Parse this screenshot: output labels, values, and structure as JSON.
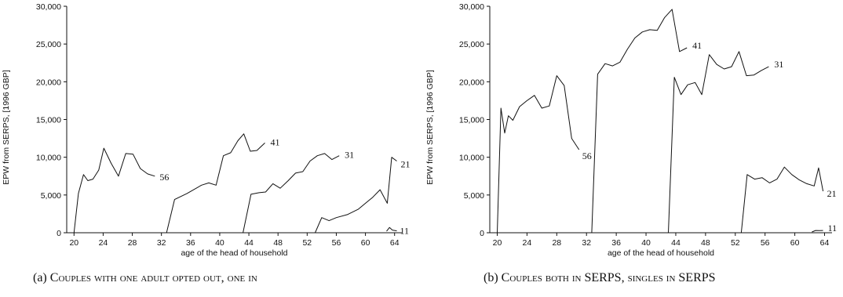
{
  "chart_data": [
    {
      "type": "line",
      "caption_label": "(a)",
      "caption_text": "Couples with one adult opted out, one in",
      "ylabel": "EPW from SERPS, [1996 GBP]",
      "xlabel": "age of the head of household",
      "xlim": [
        19,
        65
      ],
      "ylim": [
        0,
        30000
      ],
      "xticks": [
        20,
        24,
        28,
        32,
        36,
        40,
        44,
        48,
        52,
        56,
        60,
        64
      ],
      "yticks": [
        0,
        5000,
        10000,
        15000,
        20000,
        25000,
        30000
      ],
      "ytick_labels": [
        "0",
        "5,000",
        "10,000",
        "15,000",
        "20,000",
        "25,000",
        "30,000"
      ],
      "grid": false,
      "line_color": "#111111",
      "series": [
        {
          "name": "56",
          "x": [
            20,
            20.6,
            21.3,
            21.9,
            22.6,
            23.4,
            24.1,
            25.1,
            26.1,
            27.1,
            28.1,
            29.1,
            30.1,
            31.1
          ],
          "y": [
            0,
            5200,
            7700,
            6900,
            7100,
            8300,
            11200,
            9200,
            7500,
            10500,
            10400,
            8500,
            7800,
            7500
          ]
        },
        {
          "name": "41",
          "x": [
            32.7,
            33.8,
            35.5,
            37.5,
            38.5,
            39.5,
            40.5,
            41.5,
            42.5,
            43.3,
            44.2,
            45.1,
            46.2
          ],
          "y": [
            0,
            4400,
            5200,
            6300,
            6600,
            6300,
            10200,
            10600,
            12200,
            13100,
            10800,
            10900,
            11900
          ]
        },
        {
          "name": "31",
          "x": [
            43.2,
            44.3,
            45.4,
            46.3,
            47.3,
            48.3,
            49.4,
            50.4,
            51.4,
            52.4,
            53.4,
            54.4,
            55.4,
            56.4
          ],
          "y": [
            0,
            5100,
            5300,
            5400,
            6500,
            5900,
            6900,
            7900,
            8100,
            9500,
            10200,
            10500,
            9700,
            10200
          ]
        },
        {
          "name": "21",
          "x": [
            53.1,
            54.0,
            55.0,
            56.0,
            57.5,
            59.0,
            60.0,
            61.0,
            62.0,
            63.0,
            63.6,
            64.3
          ],
          "y": [
            0,
            2000,
            1600,
            2000,
            2400,
            3100,
            3900,
            4700,
            5700,
            3900,
            10000,
            9500
          ]
        },
        {
          "name": "11",
          "x": [
            62.9,
            63.3,
            63.7,
            64.3
          ],
          "y": [
            200,
            700,
            350,
            250
          ]
        }
      ]
    },
    {
      "type": "line",
      "caption_label": "(b)",
      "caption_text": "Couples both in SERPS, singles in SERPS",
      "ylabel": "EPW from SERPS, [1996 GBP]",
      "xlabel": "age of the head of household",
      "xlim": [
        19,
        65
      ],
      "ylim": [
        0,
        30000
      ],
      "xticks": [
        20,
        24,
        28,
        32,
        36,
        40,
        44,
        48,
        52,
        56,
        60,
        64
      ],
      "yticks": [
        0,
        5000,
        10000,
        15000,
        20000,
        25000,
        30000
      ],
      "ytick_labels": [
        "0",
        "5,000",
        "10,000",
        "15,000",
        "20,000",
        "25,000",
        "30,000"
      ],
      "grid": false,
      "line_color": "#111111",
      "series": [
        {
          "name": "56",
          "x": [
            20,
            20.5,
            21.0,
            21.5,
            22.1,
            23.0,
            24.0,
            25.0,
            26.0,
            27.0,
            28.0,
            29.0,
            30.0,
            31.0
          ],
          "y": [
            0,
            16500,
            13200,
            15500,
            14900,
            16700,
            17500,
            18200,
            16500,
            16800,
            20800,
            19500,
            12500,
            11000
          ]
        },
        {
          "name": "41",
          "x": [
            32.7,
            33.5,
            34.5,
            35.5,
            36.5,
            37.5,
            38.5,
            39.5,
            40.5,
            41.5,
            42.5,
            43.5,
            44.5,
            45.5
          ],
          "y": [
            0,
            21000,
            22400,
            22100,
            22600,
            24300,
            25800,
            26600,
            26900,
            26800,
            28500,
            29600,
            24000,
            24500
          ]
        },
        {
          "name": "31",
          "x": [
            43.0,
            43.8,
            44.7,
            45.6,
            46.6,
            47.5,
            48.5,
            49.5,
            50.5,
            51.5,
            52.5,
            53.5,
            54.5,
            55.5,
            56.5
          ],
          "y": [
            0,
            20600,
            18300,
            19600,
            19900,
            18300,
            23600,
            22300,
            21700,
            22000,
            24000,
            20800,
            20900,
            21500,
            22000
          ]
        },
        {
          "name": "21",
          "x": [
            52.8,
            53.6,
            54.6,
            55.6,
            56.6,
            57.6,
            58.6,
            59.6,
            60.6,
            61.6,
            62.6,
            63.2,
            63.8
          ],
          "y": [
            0,
            7700,
            7100,
            7300,
            6600,
            7100,
            8700,
            7700,
            7000,
            6500,
            6200,
            8600,
            5500
          ]
        },
        {
          "name": "11",
          "x": [
            62.3,
            62.8,
            63.3,
            63.8
          ],
          "y": [
            100,
            300,
            280,
            300
          ]
        }
      ]
    }
  ]
}
